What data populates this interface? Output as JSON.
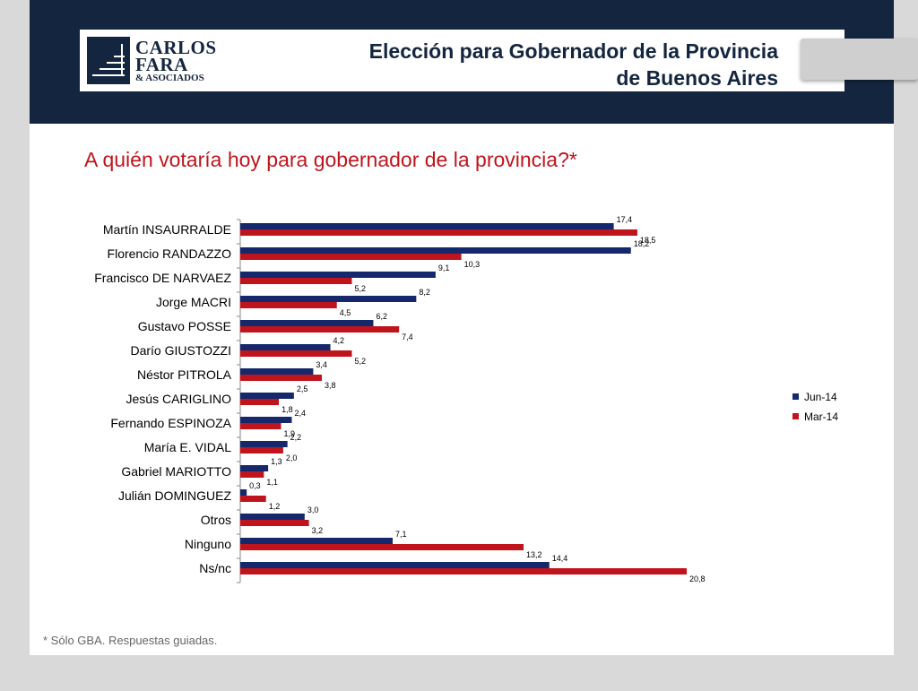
{
  "header": {
    "logo": {
      "line1": "CARLOS",
      "line2": "FARA",
      "line3": "& ASOCIADOS"
    },
    "title_line1": "Elección para Gobernador de la Provincia",
    "title_line2": "de Buenos Aires"
  },
  "question": "A quién votaría hoy para gobernador de la provincia?*",
  "footnote": "* Sólo GBA. Respuestas guiadas.",
  "colors": {
    "header_bg": "#14253f",
    "jun": "#14286b",
    "mar": "#c0141c",
    "question": "#c0141c"
  },
  "chart_data": {
    "type": "bar",
    "orientation": "horizontal",
    "categories": [
      "Martín INSAURRALDE",
      "Florencio RANDAZZO",
      "Francisco DE NARVAEZ",
      "Jorge MACRI",
      "Gustavo POSSE",
      "Darío GIUSTOZZI",
      "Néstor PITROLA",
      "Jesús CARIGLINO",
      "Fernando ESPINOZA",
      "María E. VIDAL",
      "Gabriel MARIOTTO",
      "Julián DOMINGUEZ",
      "Otros",
      "Ninguno",
      "Ns/nc"
    ],
    "series": [
      {
        "name": "Jun-14",
        "values": [
          17.4,
          18.2,
          9.1,
          8.2,
          6.2,
          4.2,
          3.4,
          2.5,
          2.4,
          2.2,
          1.3,
          0.3,
          3.0,
          7.1,
          14.4
        ],
        "labels": [
          "17,4",
          "18,2",
          "9,1",
          "8,2",
          "6,2",
          "4,2",
          "3,4",
          "2,5",
          "2,4",
          "2,2",
          "1,3",
          "0,3",
          "3,0",
          "7,1",
          "14,4"
        ]
      },
      {
        "name": "Mar-14",
        "values": [
          18.5,
          10.3,
          5.2,
          4.5,
          7.4,
          5.2,
          3.8,
          1.8,
          1.9,
          2.0,
          1.1,
          1.2,
          3.2,
          13.2,
          20.8
        ],
        "labels": [
          "18,5",
          "10,3",
          "5,2",
          "4,5",
          "7,4",
          "5,2",
          "3,8",
          "1,8",
          "1,9",
          "2,0",
          "1,1",
          "1,2",
          "3,2",
          "13,2",
          "20,8"
        ]
      }
    ],
    "xlim": [
      0,
      25
    ],
    "grid": false,
    "legend_position": "right"
  }
}
